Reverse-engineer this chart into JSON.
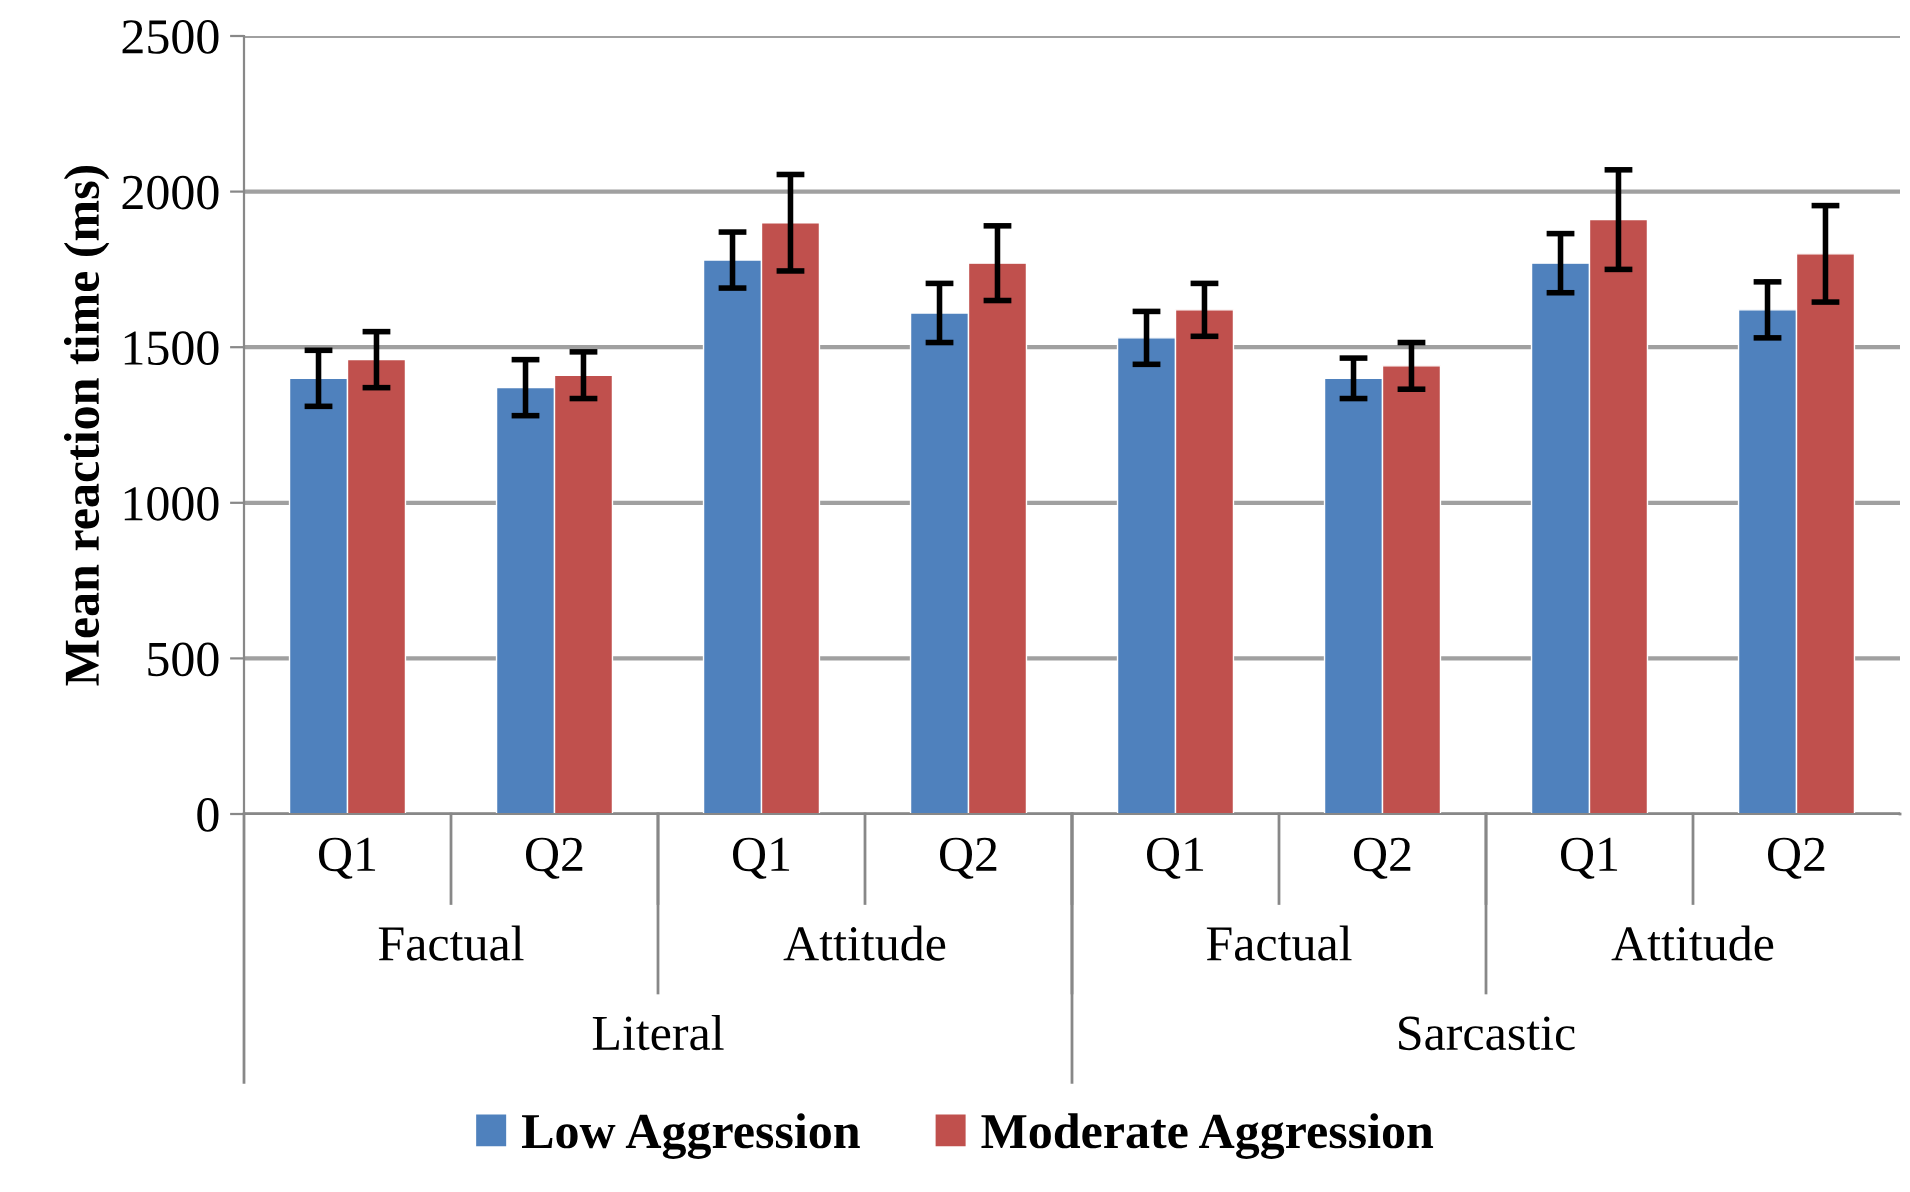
{
  "chart_data": {
    "type": "bar",
    "ylabel": "Mean reaction time (ms)",
    "categories": [
      "Q1",
      "Q2",
      "Q1",
      "Q2",
      "Q1",
      "Q2",
      "Q1",
      "Q2"
    ],
    "annotations": [
      "Factual",
      "Attitude",
      "Factual",
      "Attitude",
      "Literal",
      "Sarcastic"
    ],
    "series": [
      {
        "name": "Low Aggression",
        "color": "#4f81bd",
        "values": [
          1400,
          1370,
          1780,
          1610,
          1530,
          1400,
          1770,
          1620
        ],
        "errors": [
          90,
          90,
          90,
          95,
          85,
          65,
          95,
          90
        ]
      },
      {
        "name": "Moderate Aggression",
        "color": "#c0504d",
        "values": [
          1460,
          1410,
          1900,
          1770,
          1620,
          1440,
          1910,
          1800
        ],
        "errors": [
          90,
          75,
          155,
          120,
          85,
          75,
          160,
          155
        ]
      }
    ],
    "ylim": [
      0,
      2500
    ],
    "yticks": [
      0,
      500,
      1000,
      1500,
      2000,
      2500
    ],
    "grid": "y",
    "legend": "bottom"
  }
}
